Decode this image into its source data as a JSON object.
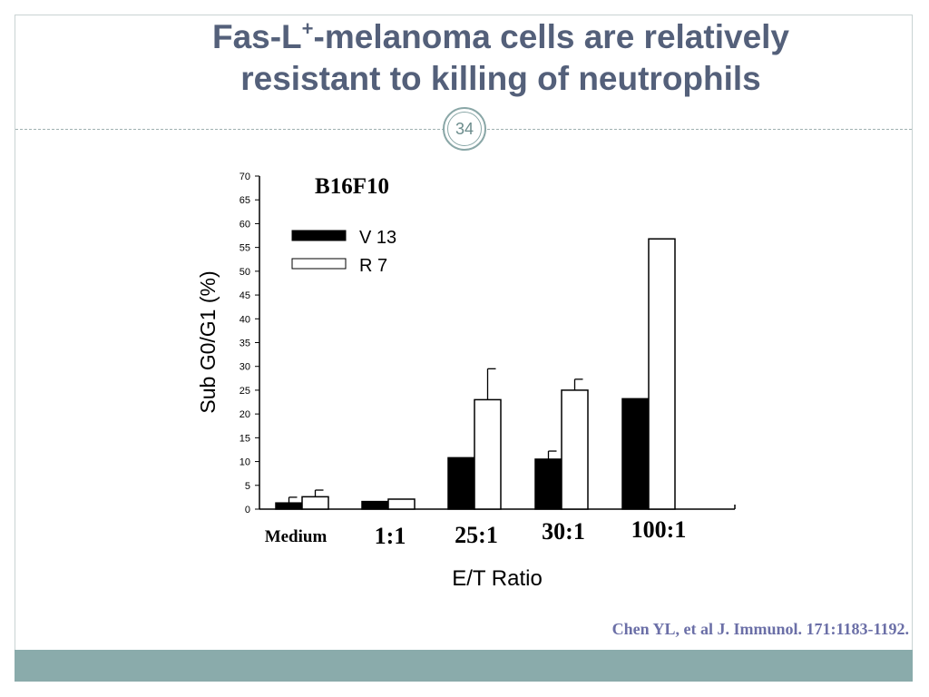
{
  "slide": {
    "title_line1": "Fas-L",
    "title_sup": "+",
    "title_line1_rest": "-melanoma cells are relatively",
    "title_line2": "resistant to killing of neutrophils",
    "page_number": "34",
    "citation": "Chen YL, et al  J. Immunol. 171:1183-1192.",
    "accent_color": "#8aabab",
    "title_color": "#54607a"
  },
  "chart_data": {
    "type": "bar",
    "title": "B16F10",
    "xlabel": "E/T Ratio",
    "ylabel": "Sub G0/G1 (%)",
    "categories": [
      "Medium",
      "1:1",
      "25:1",
      "30:1",
      "100:1"
    ],
    "ylim": [
      0,
      70
    ],
    "yticks": [
      0,
      5,
      10,
      15,
      20,
      25,
      30,
      35,
      40,
      45,
      50,
      55,
      60,
      65,
      70
    ],
    "legend_position": "top-left",
    "grid": false,
    "series": [
      {
        "name": "V 13",
        "color": "#000000",
        "values": [
          1.3,
          1.6,
          10.8,
          10.5,
          23.2
        ],
        "errors": [
          1.2,
          0,
          0,
          1.7,
          0
        ]
      },
      {
        "name": "R 7",
        "color": "#ffffff",
        "values": [
          2.6,
          2.1,
          23.0,
          25.0,
          56.8
        ],
        "errors": [
          1.4,
          0,
          6.5,
          2.3,
          0
        ]
      }
    ]
  }
}
